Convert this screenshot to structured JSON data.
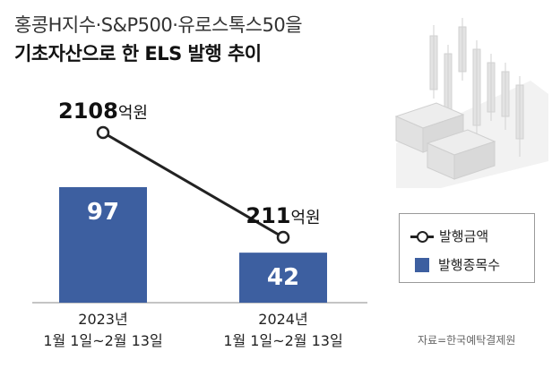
{
  "header": {
    "title_line1": "홍콩H지수·S&P500·유로스톡스50을",
    "title_line2": "기초자산으로 한 ELS 발행 추이"
  },
  "legend": {
    "line_label": "발행금액",
    "bar_label": "발행종목수"
  },
  "source": "자료=한국예탁결제원",
  "colors": {
    "bar": "#3d5fa0",
    "line": "#222222"
  },
  "icons": {
    "illustration": "candlestick-money-illustration"
  },
  "chart_data": {
    "type": "bar-line-combo",
    "categories": [
      {
        "line1": "2023년",
        "line2": "1월 1일~2월 13일"
      },
      {
        "line1": "2024년",
        "line2": "1월 1일~2월 13일"
      }
    ],
    "bar_series": {
      "name": "발행종목수",
      "values": [
        97,
        42
      ]
    },
    "line_series": {
      "name": "발행금액",
      "values": [
        2108,
        211
      ],
      "unit": "억원",
      "labels": [
        {
          "num": "2108",
          "unit": "억원"
        },
        {
          "num": "211",
          "unit": "억원"
        }
      ]
    }
  }
}
